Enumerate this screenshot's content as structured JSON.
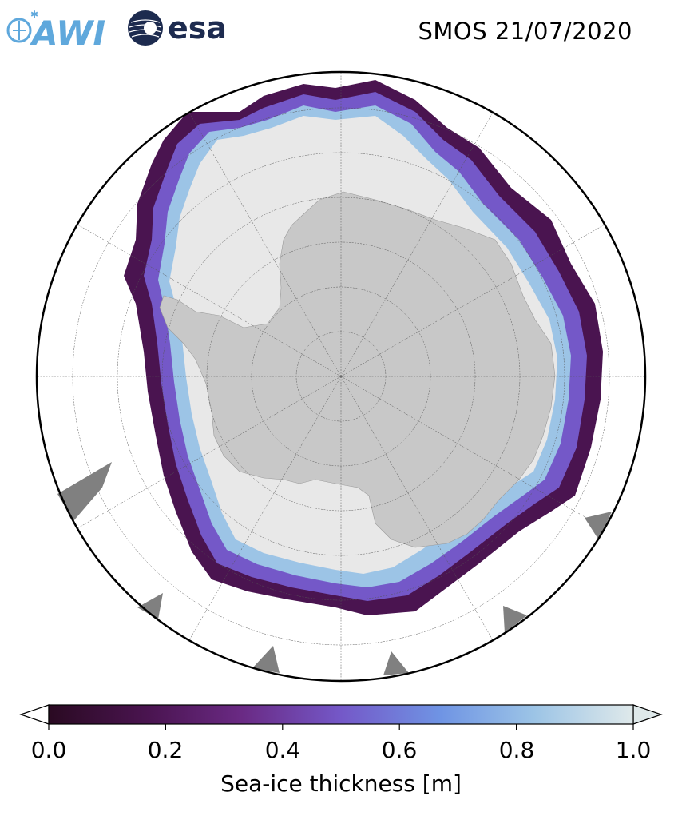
{
  "header": {
    "awi_logo_text": "AWI",
    "esa_logo_text": "esa",
    "title": "SMOS 21/07/2020"
  },
  "map": {
    "projection": "south-polar-stereographic",
    "region": "Antarctica",
    "variable": "Sea-ice thickness",
    "land_color": "#c8c8c8",
    "no_data_color": "#808080",
    "thick_ice_color": "#e8e8e8",
    "graticule": true
  },
  "colorbar": {
    "label": "Sea-ice thickness [m]",
    "min": 0.0,
    "max": 1.0,
    "extend": "both",
    "ticks": [
      "0.0",
      "0.2",
      "0.4",
      "0.6",
      "0.8",
      "1.0"
    ],
    "colormap_stops": [
      "#2a0a22",
      "#4a1450",
      "#6a2a84",
      "#7458c8",
      "#6f94e4",
      "#9cc4e6",
      "#dfe9ea"
    ]
  }
}
